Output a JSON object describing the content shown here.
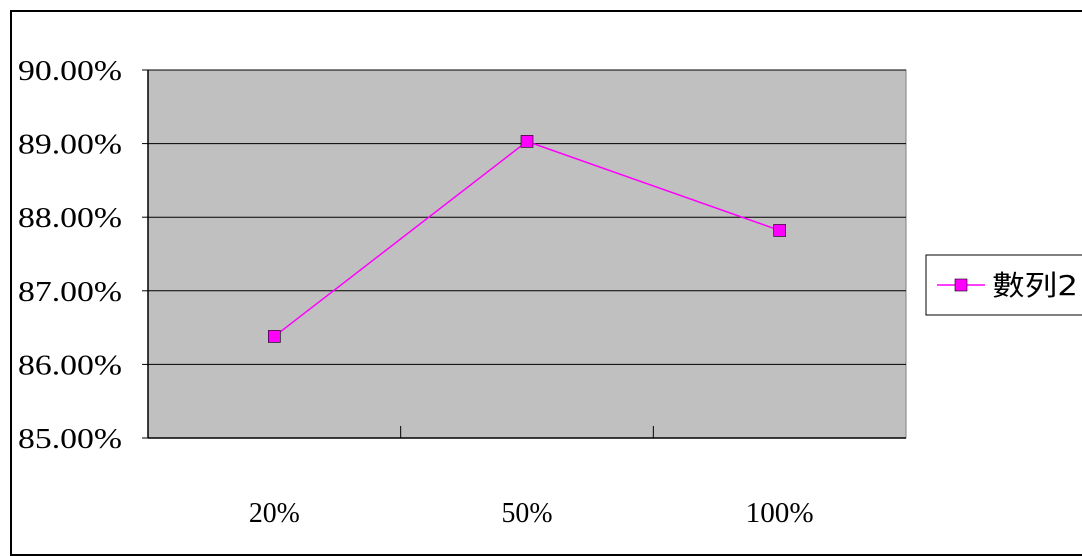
{
  "chart_data": {
    "type": "line",
    "categories": [
      "20%",
      "50%",
      "100%"
    ],
    "series": [
      {
        "name": "數列2",
        "values": [
          0.8638,
          0.8903,
          0.8782
        ],
        "color": "#FF00FF"
      }
    ],
    "ylim": [
      0.85,
      0.9
    ],
    "y_ticks": [
      0.85,
      0.86,
      0.87,
      0.88,
      0.89,
      0.9
    ],
    "y_tick_labels": [
      "85.00%",
      "86.00%",
      "87.00%",
      "88.00%",
      "89.00%",
      "90.00%"
    ],
    "grid": true,
    "plot_background": "#C0C0C0",
    "legend_position": "right",
    "marker": "square"
  }
}
